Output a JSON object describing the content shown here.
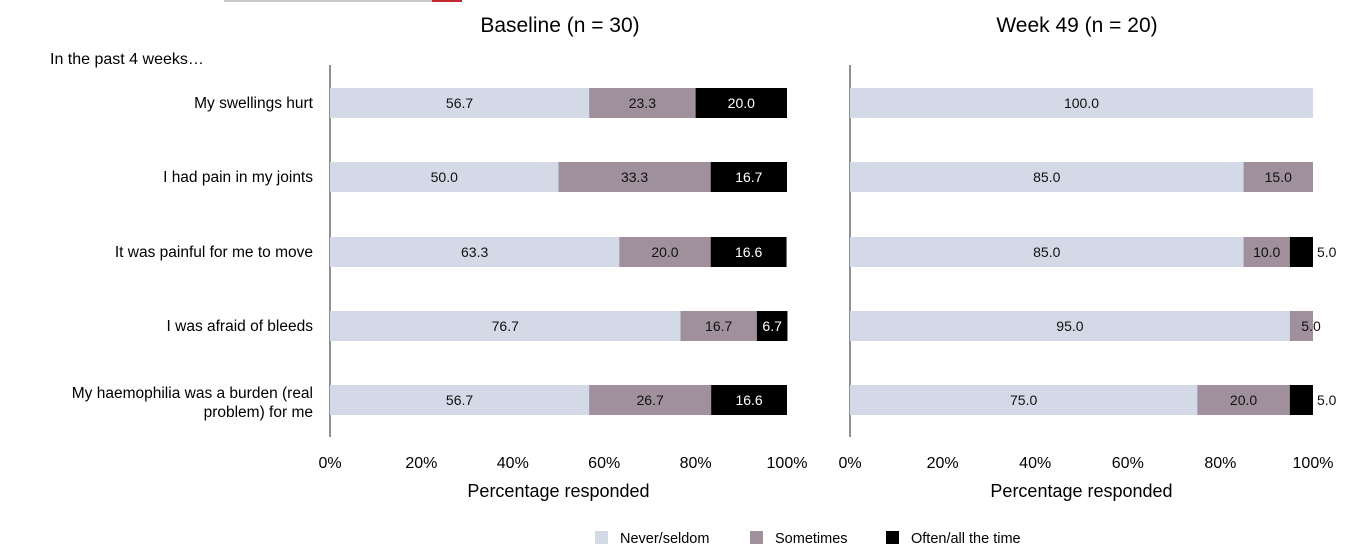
{
  "colors": {
    "never": "#d3d9e6",
    "sometimes": "#9f909c",
    "often": "#000000",
    "axis": "#222222",
    "logo_grey": "#c8c8c8",
    "logo_red": "#c0282d"
  },
  "caption": "In the past 4 weeks…",
  "legend": [
    "Never/seldom",
    "Sometimes",
    "Often/all the time"
  ],
  "chart_data": [
    {
      "type": "bar",
      "orientation": "horizontal",
      "stacked": true,
      "title": "Baseline (n = 30)",
      "xlabel": "Percentage responded",
      "xlim": [
        0,
        100
      ],
      "xticks": [
        "0%",
        "20%",
        "40%",
        "60%",
        "80%",
        "100%"
      ],
      "categories": [
        "My swellings hurt",
        "I had pain in my joints",
        "It was painful for me to move",
        "I was afraid of bleeds",
        "My haemophilia was a burden (real problem) for me"
      ],
      "series": [
        {
          "name": "Never/seldom",
          "values": [
            56.7,
            50.0,
            63.3,
            76.7,
            56.7
          ],
          "labels": [
            "56.7",
            "50.0",
            "63.3",
            "76.7",
            "56.7"
          ]
        },
        {
          "name": "Sometimes",
          "values": [
            23.3,
            33.3,
            20.0,
            16.7,
            26.7
          ],
          "labels": [
            "23.3",
            "33.3",
            "20.0",
            "16.7",
            "26.7"
          ]
        },
        {
          "name": "Often/all the time",
          "values": [
            20.0,
            16.7,
            16.6,
            6.7,
            16.6
          ],
          "labels": [
            "20.0",
            "16.7",
            "16.6",
            "6.7",
            "16.6"
          ]
        }
      ]
    },
    {
      "type": "bar",
      "orientation": "horizontal",
      "stacked": true,
      "title": "Week 49 (n = 20)",
      "xlabel": "Percentage responded",
      "xlim": [
        0,
        100
      ],
      "xticks": [
        "0%",
        "20%",
        "40%",
        "60%",
        "80%",
        "100%"
      ],
      "categories": [
        "My swellings hurt",
        "I had pain in my joints",
        "It was painful for me to move",
        "I was afraid of bleeds",
        "My haemophilia was a burden (real problem) for me"
      ],
      "series": [
        {
          "name": "Never/seldom",
          "values": [
            100.0,
            85.0,
            85.0,
            95.0,
            75.0
          ],
          "labels": [
            "100.0",
            "85.0",
            "85.0",
            "95.0",
            "75.0"
          ]
        },
        {
          "name": "Sometimes",
          "values": [
            0,
            15.0,
            10.0,
            5.0,
            20.0
          ],
          "labels": [
            "",
            "15.0",
            "10.0",
            "5.0",
            "20.0"
          ]
        },
        {
          "name": "Often/all the time",
          "values": [
            0,
            0,
            5.0,
            0,
            5.0
          ],
          "labels": [
            "",
            "",
            "5.0",
            "",
            "5.0"
          ]
        }
      ]
    }
  ]
}
